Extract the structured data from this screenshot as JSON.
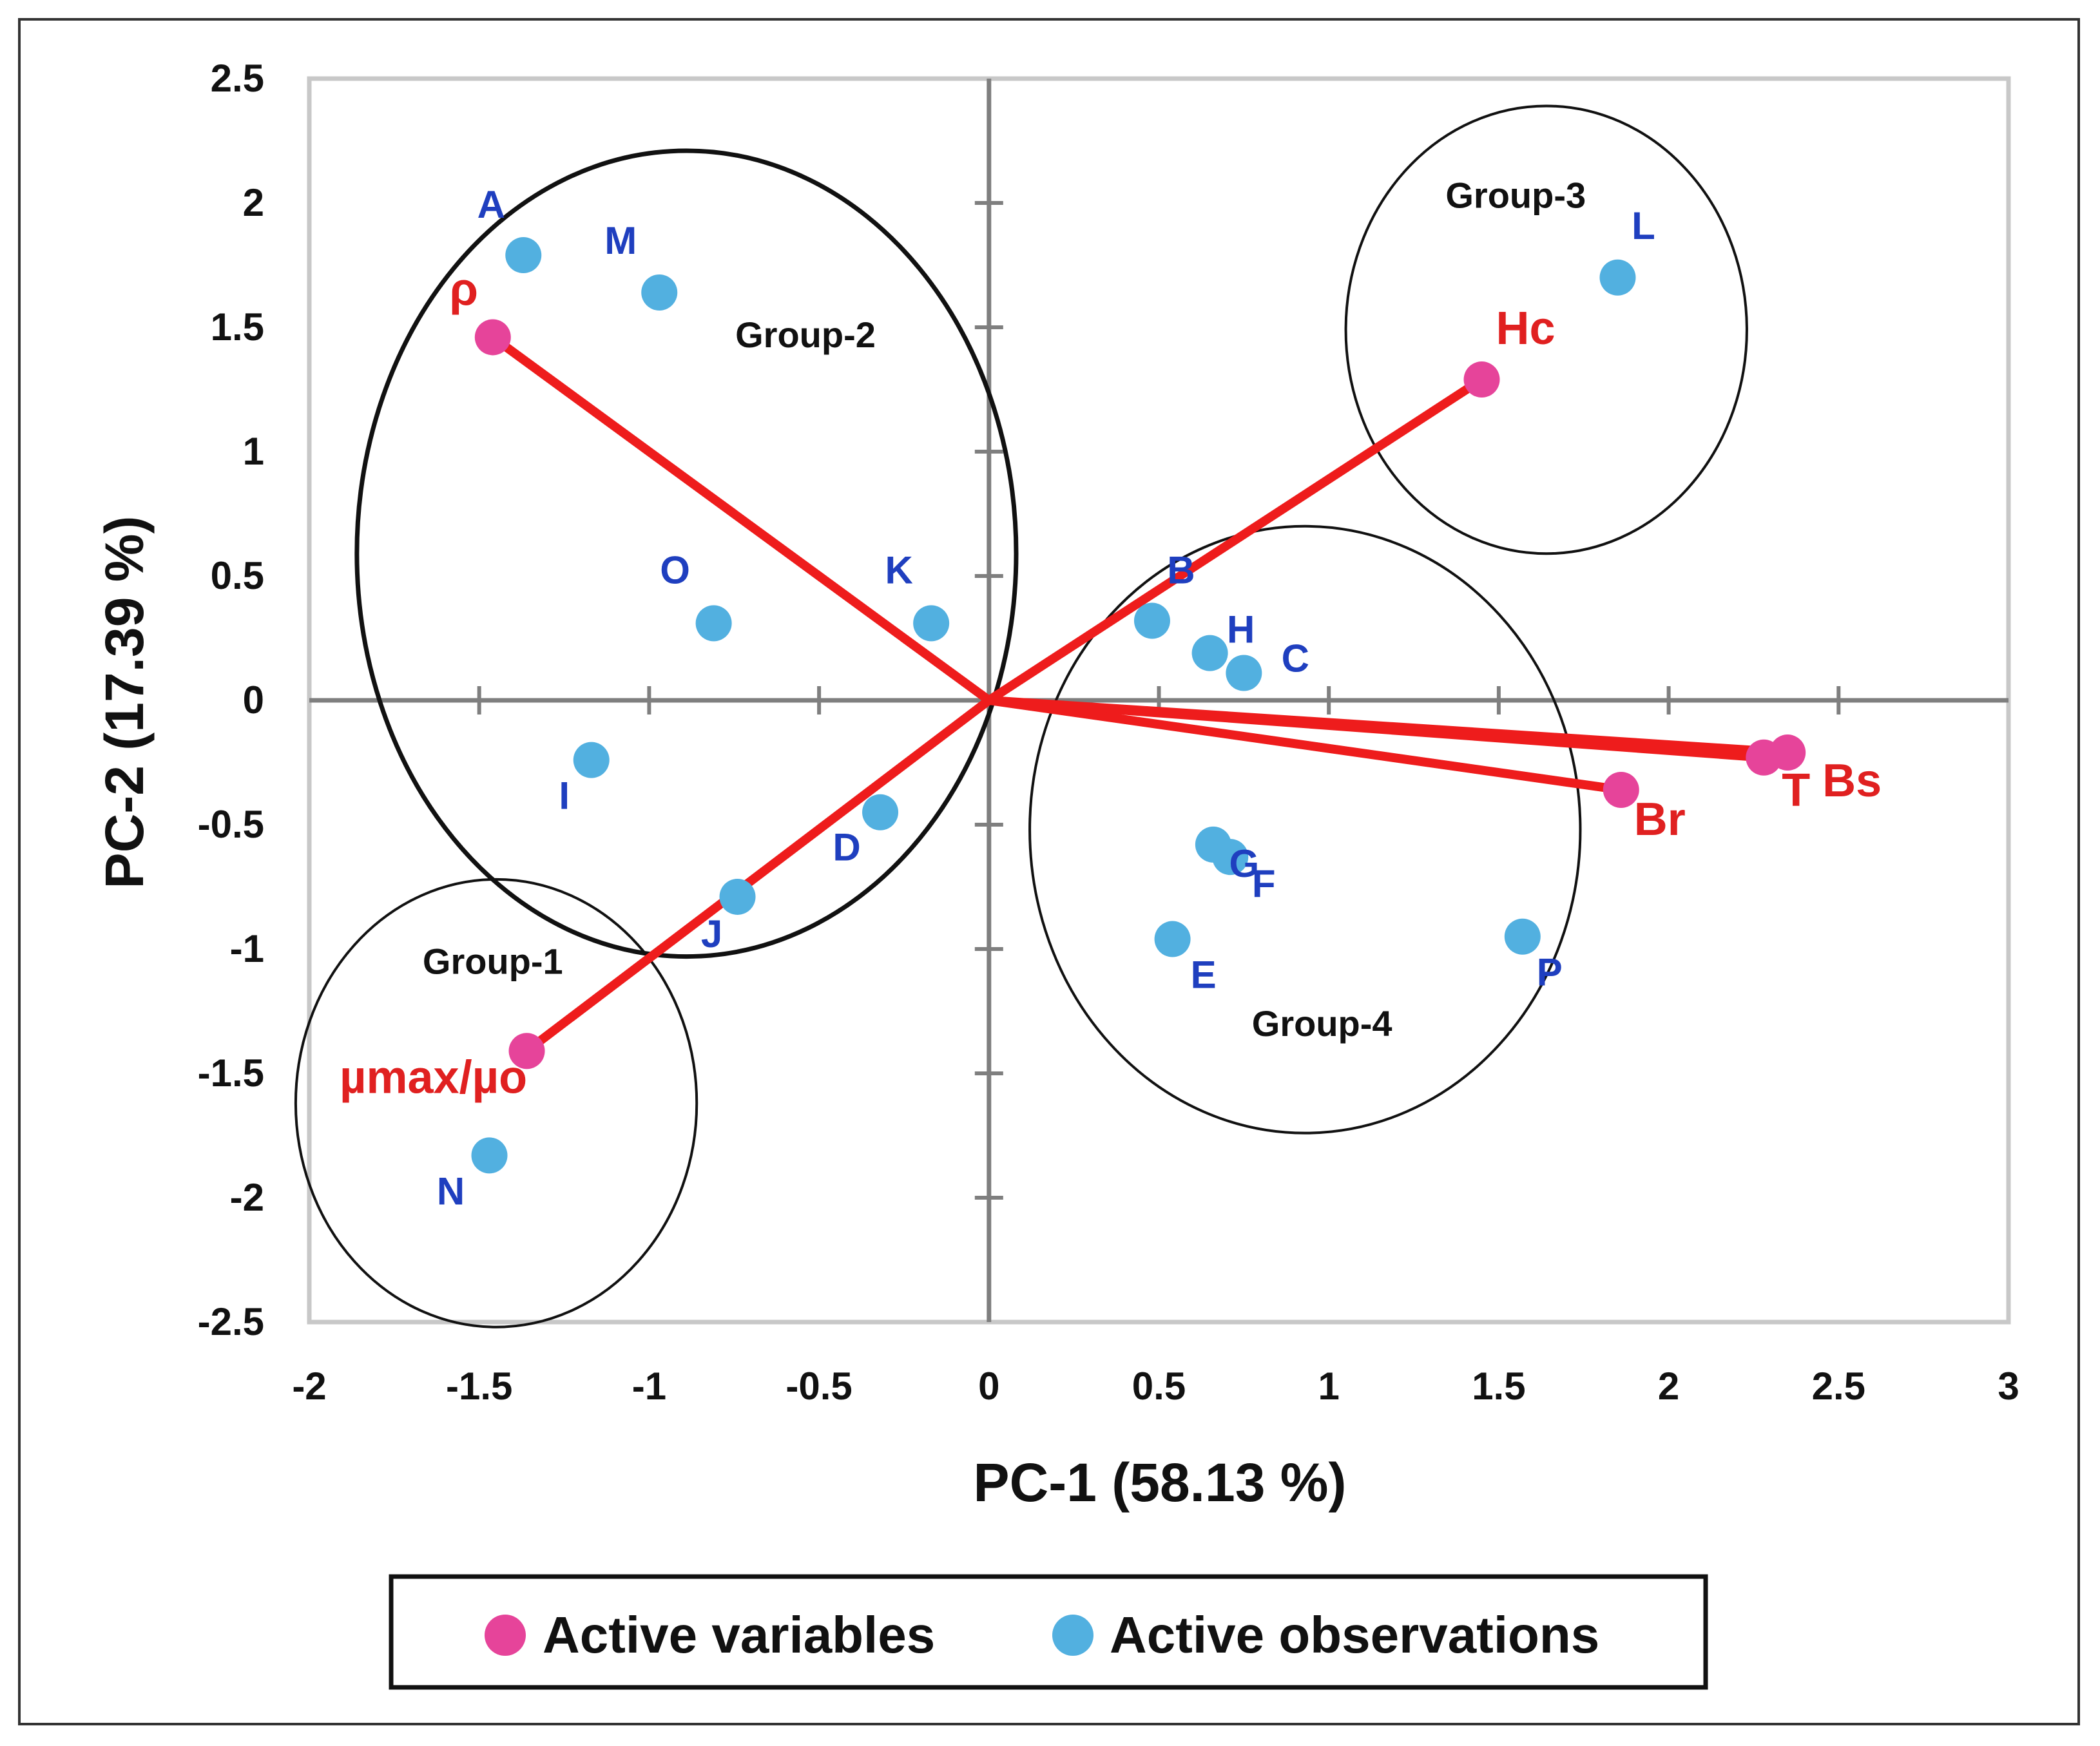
{
  "chart_data": {
    "type": "scatter",
    "subtype": "pca-biplot",
    "xlabel": "PC-1 (58.13 %)",
    "ylabel": "PC-2 (17.39 %)",
    "xlim": [
      -2,
      3
    ],
    "ylim": [
      -2.5,
      2.5
    ],
    "xticks": [
      -2,
      -1.5,
      -1,
      -0.5,
      0,
      0.5,
      1,
      1.5,
      2,
      2.5,
      3
    ],
    "yticks": [
      -2.5,
      -2,
      -1.5,
      -1,
      -0.5,
      0,
      0.5,
      1,
      1.5,
      2,
      2.5
    ],
    "xtick_labels": [
      "-2",
      "-1.5",
      "-1",
      "-0.5",
      "0",
      "0.5",
      "1",
      "1.5",
      "2",
      "2.5",
      "3"
    ],
    "ytick_labels": [
      "-2.5",
      "-2",
      "-1.5",
      "-1",
      "-0.5",
      "0",
      "0.5",
      "1",
      "1.5",
      "2",
      "2.5"
    ],
    "colors": {
      "variables": "#e6449a",
      "observations": "#52b0e0",
      "vectors": "#ee1c1c",
      "obs_text": "#1f3fbf",
      "var_text": "#e02020"
    },
    "series": [
      {
        "name": "Active variables",
        "points": [
          {
            "label": "ρ",
            "x": -1.46,
            "y": 1.46
          },
          {
            "label": "Hc",
            "x": 1.45,
            "y": 1.29
          },
          {
            "label": "T",
            "x": 2.28,
            "y": -0.23
          },
          {
            "label": "Bs",
            "x": 2.35,
            "y": -0.21
          },
          {
            "label": "Br",
            "x": 1.86,
            "y": -0.36
          },
          {
            "label": "µmax/µo",
            "x": -1.36,
            "y": -1.41
          }
        ]
      },
      {
        "name": "Active observations",
        "points": [
          {
            "label": "A",
            "x": -1.37,
            "y": 1.79
          },
          {
            "label": "M",
            "x": -0.97,
            "y": 1.64
          },
          {
            "label": "L",
            "x": 1.85,
            "y": 1.7
          },
          {
            "label": "O",
            "x": -0.81,
            "y": 0.31
          },
          {
            "label": "K",
            "x": -0.17,
            "y": 0.31
          },
          {
            "label": "B",
            "x": 0.48,
            "y": 0.32
          },
          {
            "label": "H",
            "x": 0.65,
            "y": 0.19
          },
          {
            "label": "C",
            "x": 0.75,
            "y": 0.11
          },
          {
            "label": "I",
            "x": -1.17,
            "y": -0.24
          },
          {
            "label": "D",
            "x": -0.32,
            "y": -0.45
          },
          {
            "label": "G",
            "x": 0.66,
            "y": -0.58
          },
          {
            "label": "F",
            "x": 0.71,
            "y": -0.63
          },
          {
            "label": "J",
            "x": -0.74,
            "y": -0.79
          },
          {
            "label": "E",
            "x": 0.54,
            "y": -0.96
          },
          {
            "label": "P",
            "x": 1.57,
            "y": -0.95
          },
          {
            "label": "N",
            "x": -1.47,
            "y": -1.83
          }
        ]
      }
    ],
    "groups": [
      {
        "label": "Group-1",
        "cx": -1.45,
        "cy": -1.62,
        "rx": 0.59,
        "ry": 0.9
      },
      {
        "label": "Group-2",
        "cx": -0.89,
        "cy": 0.59,
        "rx": 0.97,
        "ry": 1.62
      },
      {
        "label": "Group-3",
        "cx": 1.64,
        "cy": 1.49,
        "rx": 0.59,
        "ry": 0.9
      },
      {
        "label": "Group-4",
        "cx": 0.93,
        "cy": -0.52,
        "rx": 0.81,
        "ry": 1.22
      }
    ],
    "legend": {
      "position": "bottom",
      "entries": [
        "Active variables",
        "Active observations"
      ]
    }
  }
}
